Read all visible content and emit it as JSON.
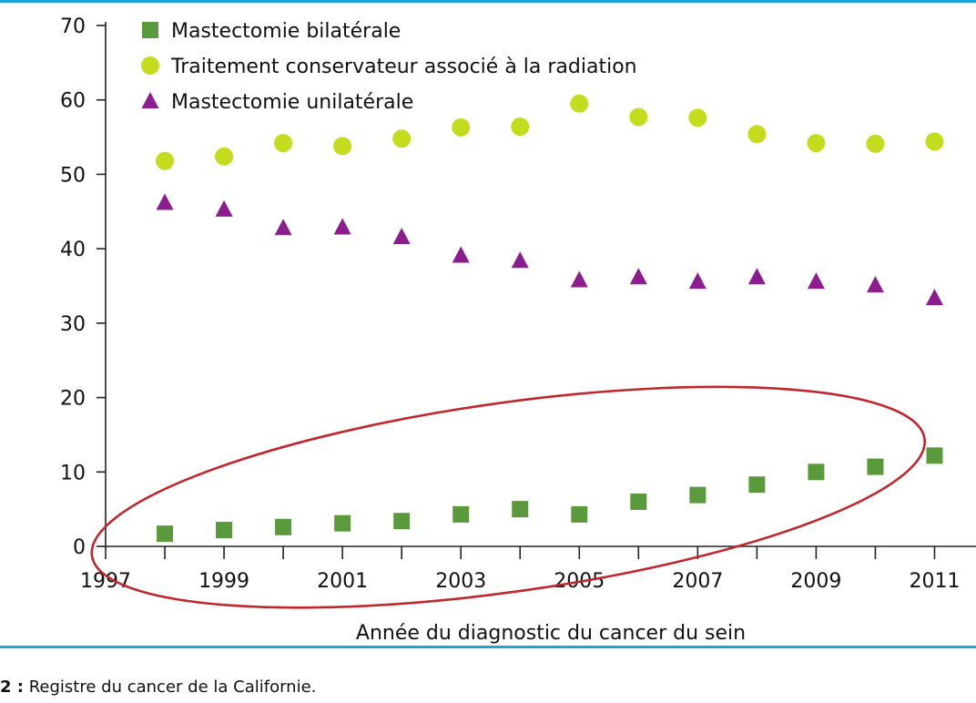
{
  "source_note": {
    "number": "2 :",
    "text": "Registre du cancer de la Californie."
  },
  "chart_data": {
    "type": "scatter",
    "xlabel": "Année du diagnostic du cancer du sein",
    "ylabel": "",
    "xlim": [
      1997,
      2011.7
    ],
    "ylim": [
      0,
      70
    ],
    "xticks": [
      1997,
      1999,
      2001,
      2003,
      2005,
      2007,
      2009,
      2011
    ],
    "xminor": [
      1998,
      2000,
      2002,
      2004,
      2006,
      2008,
      2010
    ],
    "yticks": [
      0,
      10,
      20,
      30,
      40,
      50,
      60,
      70
    ],
    "grid": false,
    "legend_position": "top-left",
    "series": [
      {
        "name": "Mastectomie bilatérale",
        "marker": "square",
        "color": "#5a9a3c",
        "x": [
          1998,
          1999,
          2000,
          2001,
          2002,
          2003,
          2004,
          2005,
          2006,
          2007,
          2008,
          2009,
          2010,
          2011
        ],
        "y": [
          1.7,
          2.2,
          2.6,
          3.1,
          3.4,
          4.3,
          5.0,
          4.3,
          6.0,
          6.9,
          8.3,
          10.0,
          10.7,
          12.2
        ]
      },
      {
        "name": "Traitement conservateur associé à la radiation",
        "marker": "circle",
        "color": "#c5dc1e",
        "x": [
          1998,
          1999,
          2000,
          2001,
          2002,
          2003,
          2004,
          2005,
          2006,
          2007,
          2008,
          2009,
          2010,
          2011
        ],
        "y": [
          51.8,
          52.4,
          54.2,
          53.8,
          54.8,
          56.3,
          56.4,
          59.5,
          57.7,
          57.6,
          55.4,
          54.2,
          54.1,
          54.4
        ]
      },
      {
        "name": "Mastectomie unilatérale",
        "marker": "triangle",
        "color": "#8b1d8f",
        "x": [
          1998,
          1999,
          2000,
          2001,
          2002,
          2003,
          2004,
          2005,
          2006,
          2007,
          2008,
          2009,
          2010,
          2011
        ],
        "y": [
          46.2,
          45.3,
          42.8,
          42.9,
          41.6,
          39.1,
          38.4,
          35.8,
          36.2,
          35.6,
          36.2,
          35.6,
          35.1,
          33.4
        ]
      }
    ],
    "annotations": [
      {
        "type": "ellipse",
        "color": "#c0272d",
        "center_x": 2003.8,
        "center_y": 6.6,
        "radius_x_years": 7.1,
        "radius_y_units": 12.7,
        "rotation_deg": -8
      }
    ]
  }
}
